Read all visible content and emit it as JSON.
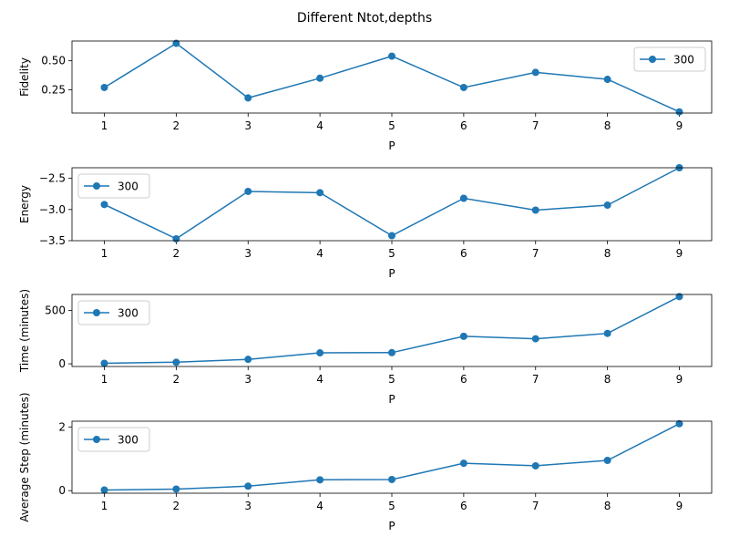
{
  "figure_title": "Different Ntot,depths",
  "colors": {
    "series": "#1f77b4",
    "axis": "#000000",
    "legend_border": "#cccccc"
  },
  "chart_data": [
    {
      "type": "line",
      "title": "",
      "xlabel": "P",
      "ylabel": "Fidelity",
      "x": [
        1,
        2,
        3,
        4,
        5,
        6,
        7,
        8,
        9
      ],
      "series": [
        {
          "name": "300",
          "values": [
            0.27,
            0.65,
            0.18,
            0.35,
            0.54,
            0.27,
            0.4,
            0.34,
            0.06
          ]
        }
      ],
      "xlim": [
        0.55,
        9.45
      ],
      "ylim": [
        0.05,
        0.67
      ],
      "xticks": [
        1,
        2,
        3,
        4,
        5,
        6,
        7,
        8,
        9
      ],
      "xtick_labels": [
        "1",
        "2",
        "3",
        "4",
        "5",
        "6",
        "7",
        "8",
        "9"
      ],
      "yticks": [
        0.25,
        0.5
      ],
      "ytick_labels": [
        "0.25",
        "0.50"
      ],
      "legend": "top-right",
      "grid": false
    },
    {
      "type": "line",
      "title": "",
      "xlabel": "P",
      "ylabel": "Energy",
      "x": [
        1,
        2,
        3,
        4,
        5,
        6,
        7,
        8,
        9
      ],
      "series": [
        {
          "name": "300",
          "values": [
            -2.92,
            -3.47,
            -2.71,
            -2.73,
            -3.42,
            -2.82,
            -3.01,
            -2.93,
            -2.33
          ]
        }
      ],
      "xlim": [
        0.55,
        9.45
      ],
      "ylim": [
        -3.5,
        -2.33
      ],
      "xticks": [
        1,
        2,
        3,
        4,
        5,
        6,
        7,
        8,
        9
      ],
      "xtick_labels": [
        "1",
        "2",
        "3",
        "4",
        "5",
        "6",
        "7",
        "8",
        "9"
      ],
      "yticks": [
        -3.5,
        -3.0,
        -2.5
      ],
      "ytick_labels": [
        "−3.5",
        "−3.0",
        "−2.5"
      ],
      "legend": "top-left",
      "grid": false
    },
    {
      "type": "line",
      "title": "",
      "xlabel": "P",
      "ylabel": "Time (minutes)",
      "x": [
        1,
        2,
        3,
        4,
        5,
        6,
        7,
        8,
        9
      ],
      "series": [
        {
          "name": "300",
          "values": [
            5,
            15,
            42,
            103,
            105,
            258,
            235,
            285,
            630
          ]
        }
      ],
      "xlim": [
        0.55,
        9.45
      ],
      "ylim": [
        -25,
        650
      ],
      "xticks": [
        1,
        2,
        3,
        4,
        5,
        6,
        7,
        8,
        9
      ],
      "xtick_labels": [
        "1",
        "2",
        "3",
        "4",
        "5",
        "6",
        "7",
        "8",
        "9"
      ],
      "yticks": [
        0,
        500
      ],
      "ytick_labels": [
        "0",
        "500"
      ],
      "legend": "top-left",
      "grid": false
    },
    {
      "type": "line",
      "title": "",
      "xlabel": "P",
      "ylabel": "Average Step (minutes)",
      "x": [
        1,
        2,
        3,
        4,
        5,
        6,
        7,
        8,
        9
      ],
      "series": [
        {
          "name": "300",
          "values": [
            0.02,
            0.05,
            0.14,
            0.34,
            0.35,
            0.86,
            0.78,
            0.95,
            2.1
          ]
        }
      ],
      "xlim": [
        0.55,
        9.45
      ],
      "ylim": [
        -0.08,
        2.18
      ],
      "xticks": [
        1,
        2,
        3,
        4,
        5,
        6,
        7,
        8,
        9
      ],
      "xtick_labels": [
        "1",
        "2",
        "3",
        "4",
        "5",
        "6",
        "7",
        "8",
        "9"
      ],
      "yticks": [
        0,
        2
      ],
      "ytick_labels": [
        "0",
        "2"
      ],
      "legend": "top-left",
      "grid": false
    }
  ]
}
